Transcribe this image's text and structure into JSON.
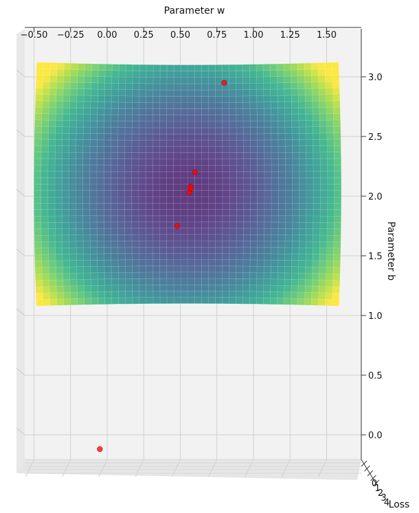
{
  "chart_data": {
    "type": "surface3d",
    "title": "",
    "xlabel": "Parameter w",
    "ylabel": "Parameter b",
    "zlabel": "Loss",
    "x_ticks": [
      "−0.50",
      "−0.25",
      "0.00",
      "0.25",
      "0.50",
      "0.75",
      "1.00",
      "1.25",
      "1.50"
    ],
    "y_ticks": [
      "0.0",
      "0.5",
      "1.0",
      "1.5",
      "2.0",
      "2.5",
      "3.0"
    ],
    "z_ticks": [
      "0",
      "1",
      "2",
      "3",
      "4"
    ],
    "xlim": [
      -0.6,
      1.65
    ],
    "ylim": [
      -0.15,
      3.25
    ],
    "surface": {
      "w_range": [
        -0.5,
        1.6
      ],
      "b_range": [
        1.1,
        3.1
      ],
      "center": [
        0.55,
        2.05
      ],
      "colormap": "viridis"
    },
    "points": [
      {
        "w": 0.8,
        "b": 2.95
      },
      {
        "w": 0.6,
        "b": 2.2
      },
      {
        "w": 0.57,
        "b": 2.08
      },
      {
        "w": 0.57,
        "b": 2.06
      },
      {
        "w": 0.56,
        "b": 2.03
      },
      {
        "w": 0.48,
        "b": 1.75
      },
      {
        "w": -0.05,
        "b": -0.12
      }
    ],
    "grid": true,
    "colors": {
      "points": "#ff0000"
    }
  }
}
